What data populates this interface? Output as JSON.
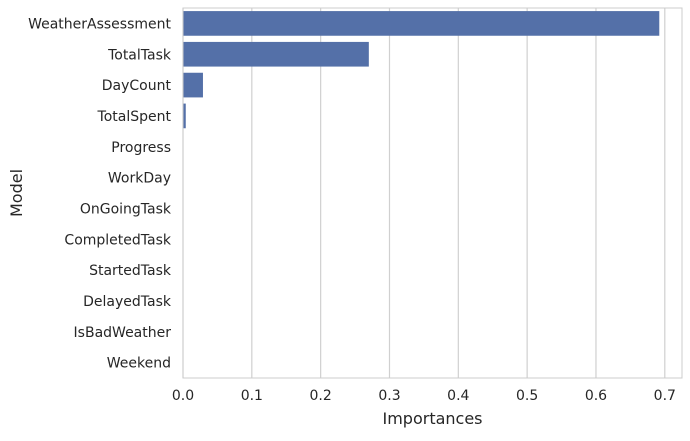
{
  "chart_data": {
    "type": "bar",
    "orientation": "horizontal",
    "title": "",
    "xlabel": "Importances",
    "ylabel": "Model",
    "categories": [
      "WeatherAssessment",
      "TotalTask",
      "DayCount",
      "TotalSpent",
      "Progress",
      "WorkDay",
      "OnGoingTask",
      "CompletedTask",
      "StartedTask",
      "DelayedTask",
      "IsBadWeather",
      "Weekend"
    ],
    "values": [
      0.692,
      0.27,
      0.029,
      0.004,
      0.0,
      0.0,
      0.0,
      0.0,
      0.0,
      0.0,
      0.0,
      0.0
    ],
    "xlim": [
      0,
      0.725
    ],
    "xticks": [
      0.0,
      0.1,
      0.2,
      0.3,
      0.4,
      0.5,
      0.6,
      0.7
    ],
    "xtick_labels": [
      "0.0",
      "0.1",
      "0.2",
      "0.3",
      "0.4",
      "0.5",
      "0.6",
      "0.7"
    ],
    "grid": "vertical",
    "legend": "none",
    "colors": {
      "bar": "#5470a8",
      "grid": "#d0d0d0",
      "axes_edge": "#cccccc",
      "text": "#262626",
      "background": "#ffffff"
    }
  }
}
